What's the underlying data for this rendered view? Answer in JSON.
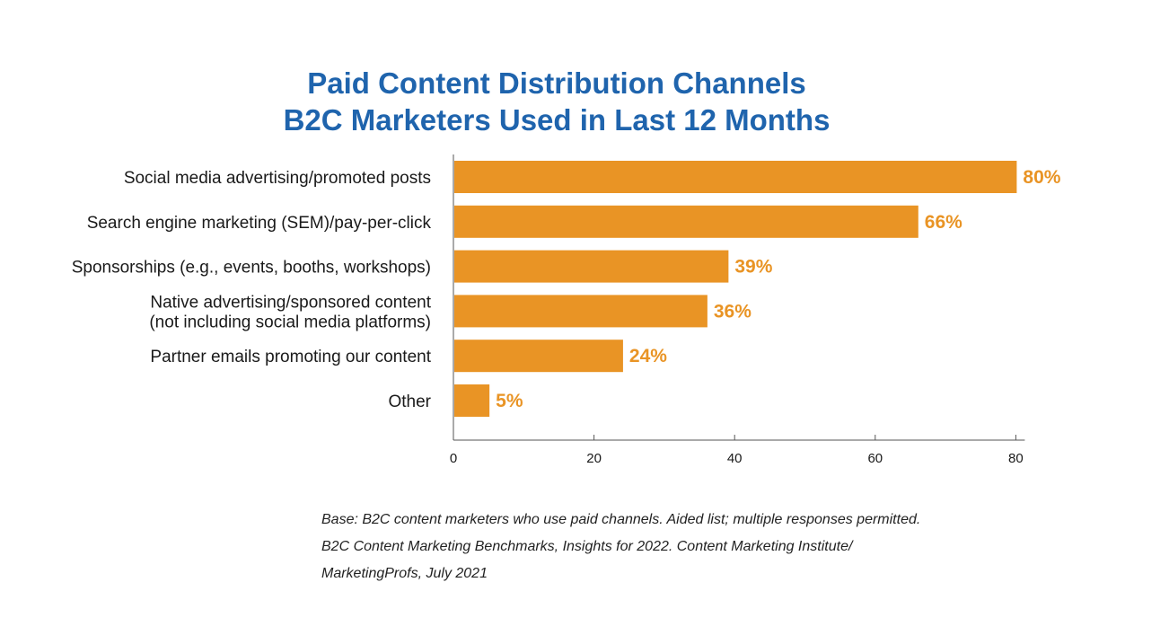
{
  "title_lines": [
    "Paid Content Distribution Channels",
    "B2C Marketers Used in Last 12 Months"
  ],
  "chart_data": {
    "type": "bar",
    "orientation": "horizontal",
    "categories": [
      [
        "Social media advertising/promoted posts"
      ],
      [
        "Search engine marketing (SEM)/pay-per-click"
      ],
      [
        "Sponsorships (e.g., events, booths, workshops)"
      ],
      [
        "Native advertising/sponsored content",
        "(not including social media platforms)"
      ],
      [
        "Partner emails promoting our content"
      ],
      [
        "Other"
      ]
    ],
    "values": [
      80,
      66,
      39,
      36,
      24,
      5
    ],
    "value_labels": [
      "80%",
      "66%",
      "39%",
      "36%",
      "24%",
      "5%"
    ],
    "xlim": [
      0,
      80
    ],
    "xticks": [
      0,
      20,
      40,
      60,
      80
    ],
    "xtick_labels": [
      "0",
      "20",
      "40",
      "60",
      "80"
    ],
    "grid": false,
    "bar_color": "#e99425",
    "label_color": "#e99425"
  },
  "notes": [
    "Base: B2C content marketers who use paid channels. Aided list; multiple responses permitted.",
    "B2C Content Marketing Benchmarks, Insights for 2022. Content Marketing Institute/",
    "MarketingProfs, July 2021"
  ]
}
